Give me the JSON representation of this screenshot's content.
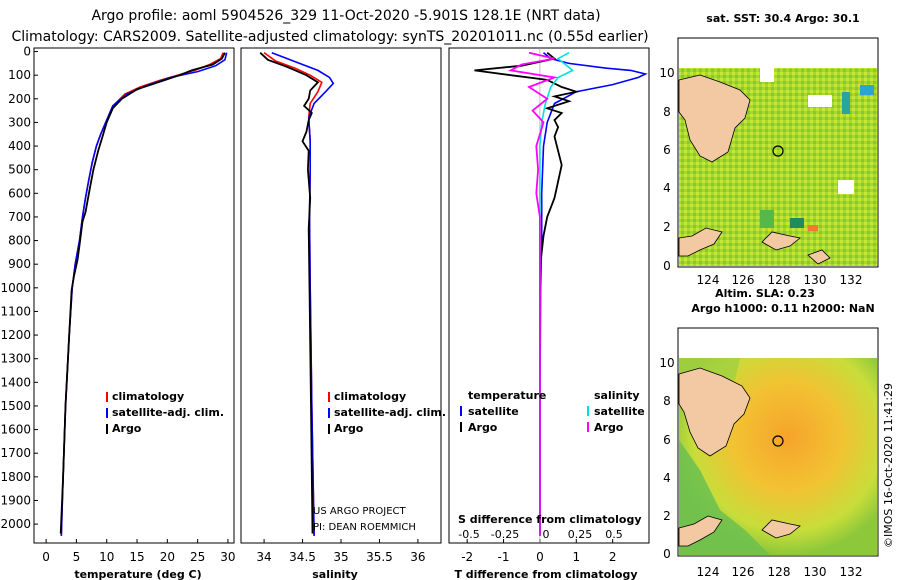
{
  "header": {
    "line1": "Argo profile: aoml 5904526_329 11-Oct-2020 -5.901S 128.1E (NRT data)",
    "line2": "Climatology: CARS2009. Satellite-adjusted climatology: synTS_20201011.nc (0.55d earlier)"
  },
  "colors": {
    "climatology": "#ff0000",
    "satellite": "#0000ff",
    "argo": "#000000",
    "sal_satellite": "#00e0e0",
    "sal_argo": "#ff00ff"
  },
  "chart_data": [
    {
      "type": "line",
      "id": "temperature",
      "xlabel": "temperature (deg C)",
      "ylabel": "depth",
      "xlim": [
        -2,
        31
      ],
      "ylim": [
        2080,
        -15
      ],
      "xticks": [
        0,
        5,
        10,
        15,
        20,
        25,
        30
      ],
      "yticks": [
        0,
        100,
        200,
        300,
        400,
        500,
        600,
        700,
        800,
        900,
        1000,
        1100,
        1200,
        1300,
        1400,
        1500,
        1600,
        1700,
        1800,
        1900,
        2000
      ],
      "legend": [
        "climatology",
        "satellite-adj. clim.",
        "Argo"
      ],
      "series": [
        {
          "name": "climatology",
          "points": [
            [
              29.2,
              5
            ],
            [
              28.8,
              30
            ],
            [
              27,
              55
            ],
            [
              24.5,
              80
            ],
            [
              19,
              120
            ],
            [
              15.5,
              150
            ],
            [
              13,
              180
            ],
            [
              11,
              230
            ],
            [
              10,
              290
            ],
            [
              9,
              350
            ],
            [
              8.3,
              400
            ],
            [
              7.6,
              470
            ],
            [
              7,
              550
            ],
            [
              6.5,
              620
            ],
            [
              6,
              700
            ],
            [
              5.5,
              800
            ],
            [
              4.8,
              900
            ],
            [
              4.3,
              1000
            ],
            [
              3.8,
              1200
            ],
            [
              3.2,
              1500
            ],
            [
              2.8,
              1800
            ],
            [
              2.5,
              2050
            ]
          ]
        },
        {
          "name": "satellite-adj. clim.",
          "points": [
            [
              29.8,
              5
            ],
            [
              29.5,
              35
            ],
            [
              28,
              60
            ],
            [
              25,
              85
            ],
            [
              20.5,
              110
            ],
            [
              16.5,
              145
            ],
            [
              13.3,
              180
            ],
            [
              11,
              230
            ],
            [
              10,
              290
            ],
            [
              9,
              350
            ],
            [
              8.3,
              400
            ],
            [
              7.6,
              470
            ],
            [
              7,
              550
            ],
            [
              6.5,
              620
            ],
            [
              6,
              700
            ],
            [
              5.5,
              800
            ],
            [
              4.8,
              900
            ],
            [
              4.3,
              1000
            ],
            [
              3.8,
              1200
            ],
            [
              3.2,
              1500
            ],
            [
              2.8,
              1800
            ],
            [
              2.5,
              2050
            ]
          ]
        },
        {
          "name": "Argo",
          "points": [
            [
              29.5,
              5
            ],
            [
              29,
              30
            ],
            [
              27.5,
              55
            ],
            [
              24,
              80
            ],
            [
              22,
              100
            ],
            [
              18.5,
              130
            ],
            [
              15,
              160
            ],
            [
              12.5,
              200
            ],
            [
              11,
              240
            ],
            [
              10,
              300
            ],
            [
              9.3,
              360
            ],
            [
              8.6,
              420
            ],
            [
              7.8,
              500
            ],
            [
              7.2,
              580
            ],
            [
              6.5,
              680
            ],
            [
              6,
              720
            ],
            [
              5.6,
              800
            ],
            [
              5.2,
              880
            ],
            [
              4.6,
              950
            ],
            [
              4.2,
              1010
            ],
            [
              3.8,
              1200
            ],
            [
              3.2,
              1500
            ],
            [
              2.8,
              1800
            ],
            [
              2.4,
              2040
            ]
          ]
        }
      ]
    },
    {
      "type": "line",
      "id": "salinity",
      "xlabel": "salinity",
      "xlim": [
        33.7,
        36.3
      ],
      "ylim": [
        2080,
        -15
      ],
      "xticks": [
        34,
        34.5,
        35,
        35.5,
        36
      ],
      "legend": [
        "climatology",
        "satellite-adj. clim.",
        "Argo"
      ],
      "annotations": [
        "US ARGO PROJECT",
        "PI: DEAN ROEMMICH"
      ],
      "series": [
        {
          "name": "climatology",
          "points": [
            [
              34.0,
              5
            ],
            [
              34.15,
              40
            ],
            [
              34.4,
              70
            ],
            [
              34.6,
              100
            ],
            [
              34.75,
              130
            ],
            [
              34.7,
              170
            ],
            [
              34.6,
              220
            ],
            [
              34.58,
              280
            ],
            [
              34.6,
              380
            ],
            [
              34.6,
              500
            ],
            [
              34.59,
              700
            ],
            [
              34.6,
              1000
            ],
            [
              34.62,
              1500
            ],
            [
              34.65,
              2050
            ]
          ]
        },
        {
          "name": "satellite-adj. clim.",
          "points": [
            [
              34.1,
              5
            ],
            [
              34.3,
              30
            ],
            [
              34.5,
              55
            ],
            [
              34.7,
              80
            ],
            [
              34.85,
              110
            ],
            [
              34.9,
              135
            ],
            [
              34.8,
              170
            ],
            [
              34.65,
              220
            ],
            [
              34.58,
              280
            ],
            [
              34.6,
              380
            ],
            [
              34.6,
              500
            ],
            [
              34.59,
              700
            ],
            [
              34.6,
              1000
            ],
            [
              34.62,
              1500
            ],
            [
              34.65,
              2050
            ]
          ]
        },
        {
          "name": "Argo",
          "points": [
            [
              33.95,
              5
            ],
            [
              34.05,
              35
            ],
            [
              34.3,
              65
            ],
            [
              34.55,
              100
            ],
            [
              34.7,
              130
            ],
            [
              34.6,
              165
            ],
            [
              34.58,
              200
            ],
            [
              34.52,
              230
            ],
            [
              34.62,
              260
            ],
            [
              34.58,
              290
            ],
            [
              34.55,
              340
            ],
            [
              34.5,
              380
            ],
            [
              34.58,
              420
            ],
            [
              34.57,
              500
            ],
            [
              34.6,
              620
            ],
            [
              34.58,
              750
            ],
            [
              34.59,
              1000
            ],
            [
              34.61,
              1500
            ],
            [
              34.63,
              2040
            ]
          ]
        }
      ]
    },
    {
      "type": "line",
      "id": "difference",
      "xlabel": "T difference from climatology",
      "xlim": [
        -2.5,
        3
      ],
      "ylim": [
        2080,
        -15
      ],
      "xticks": [
        -2,
        -1,
        0,
        1,
        2
      ],
      "sal_axis_label": "S difference from climatology",
      "sal_ticks": [
        "-0.5",
        "-0.25",
        "0",
        "0.25",
        "0.5"
      ],
      "legend": {
        "temperature": "temperature",
        "salinity": "salinity",
        "satellite": "satellite",
        "argo": "Argo"
      },
      "series": [
        {
          "name": "temperature satellite",
          "points": [
            [
              0.1,
              5
            ],
            [
              0.3,
              30
            ],
            [
              0.8,
              50
            ],
            [
              1.8,
              70
            ],
            [
              2.5,
              80
            ],
            [
              2.9,
              95
            ],
            [
              2.7,
              110
            ],
            [
              2,
              140
            ],
            [
              1,
              170
            ],
            [
              0.4,
              220
            ],
            [
              0.2,
              300
            ],
            [
              0.1,
              400
            ],
            [
              0.05,
              600
            ],
            [
              0.05,
              800
            ],
            [
              0.02,
              1000
            ],
            [
              0,
              1500
            ],
            [
              0,
              2050
            ]
          ]
        },
        {
          "name": "temperature Argo",
          "points": [
            [
              0.2,
              5
            ],
            [
              0.4,
              30
            ],
            [
              -0.5,
              60
            ],
            [
              -1.8,
              80
            ],
            [
              -0.8,
              100
            ],
            [
              0.2,
              120
            ],
            [
              0.6,
              150
            ],
            [
              1,
              170
            ],
            [
              0.4,
              190
            ],
            [
              0.8,
              210
            ],
            [
              0.2,
              240
            ],
            [
              0.6,
              260
            ],
            [
              0.4,
              290
            ],
            [
              0.5,
              320
            ],
            [
              0.4,
              360
            ],
            [
              0.5,
              420
            ],
            [
              0.6,
              480
            ],
            [
              0.5,
              550
            ],
            [
              0.4,
              620
            ],
            [
              0.2,
              700
            ],
            [
              0.1,
              780
            ],
            [
              0.05,
              850
            ],
            [
              0,
              900
            ],
            [
              0,
              1000
            ],
            [
              0,
              1500
            ],
            [
              0,
              2050
            ]
          ]
        },
        {
          "name": "salinity satellite",
          "points": [
            [
              0.8,
              5
            ],
            [
              0.5,
              30
            ],
            [
              0.7,
              55
            ],
            [
              0.9,
              80
            ],
            [
              0.5,
              110
            ],
            [
              0.3,
              150
            ],
            [
              0.15,
              220
            ],
            [
              0.05,
              300
            ],
            [
              0,
              400
            ],
            [
              0,
              700
            ],
            [
              0,
              1000
            ],
            [
              0,
              1500
            ],
            [
              0,
              2050
            ]
          ]
        },
        {
          "name": "salinity Argo",
          "points": [
            [
              -0.3,
              5
            ],
            [
              0.4,
              30
            ],
            [
              -0.5,
              55
            ],
            [
              -0.8,
              80
            ],
            [
              0.4,
              110
            ],
            [
              -0.3,
              150
            ],
            [
              0.2,
              200
            ],
            [
              -0.2,
              250
            ],
            [
              0.1,
              300
            ],
            [
              -0.1,
              400
            ],
            [
              -0.05,
              500
            ],
            [
              -0.1,
              600
            ],
            [
              0,
              700
            ],
            [
              0,
              900
            ],
            [
              0,
              1500
            ],
            [
              0,
              2050
            ]
          ]
        }
      ]
    }
  ],
  "map_top": {
    "title": "sat. SST: 30.4  Argo: 30.1",
    "xticks": [
      "124",
      "126",
      "128",
      "130",
      "132"
    ],
    "yticks": [
      "0",
      "2",
      "4",
      "6",
      "8",
      "10"
    ]
  },
  "map_bottom": {
    "title_line1": "Altim. SLA: 0.23",
    "title_line2": "Argo h1000: 0.11 h2000: NaN",
    "xticks": [
      "124",
      "126",
      "128",
      "130",
      "132"
    ],
    "yticks": [
      "0",
      "2",
      "4",
      "6",
      "8",
      "10"
    ]
  },
  "footer": {
    "stamp": "©IMOS 16-Oct-2020 11:41:29"
  }
}
